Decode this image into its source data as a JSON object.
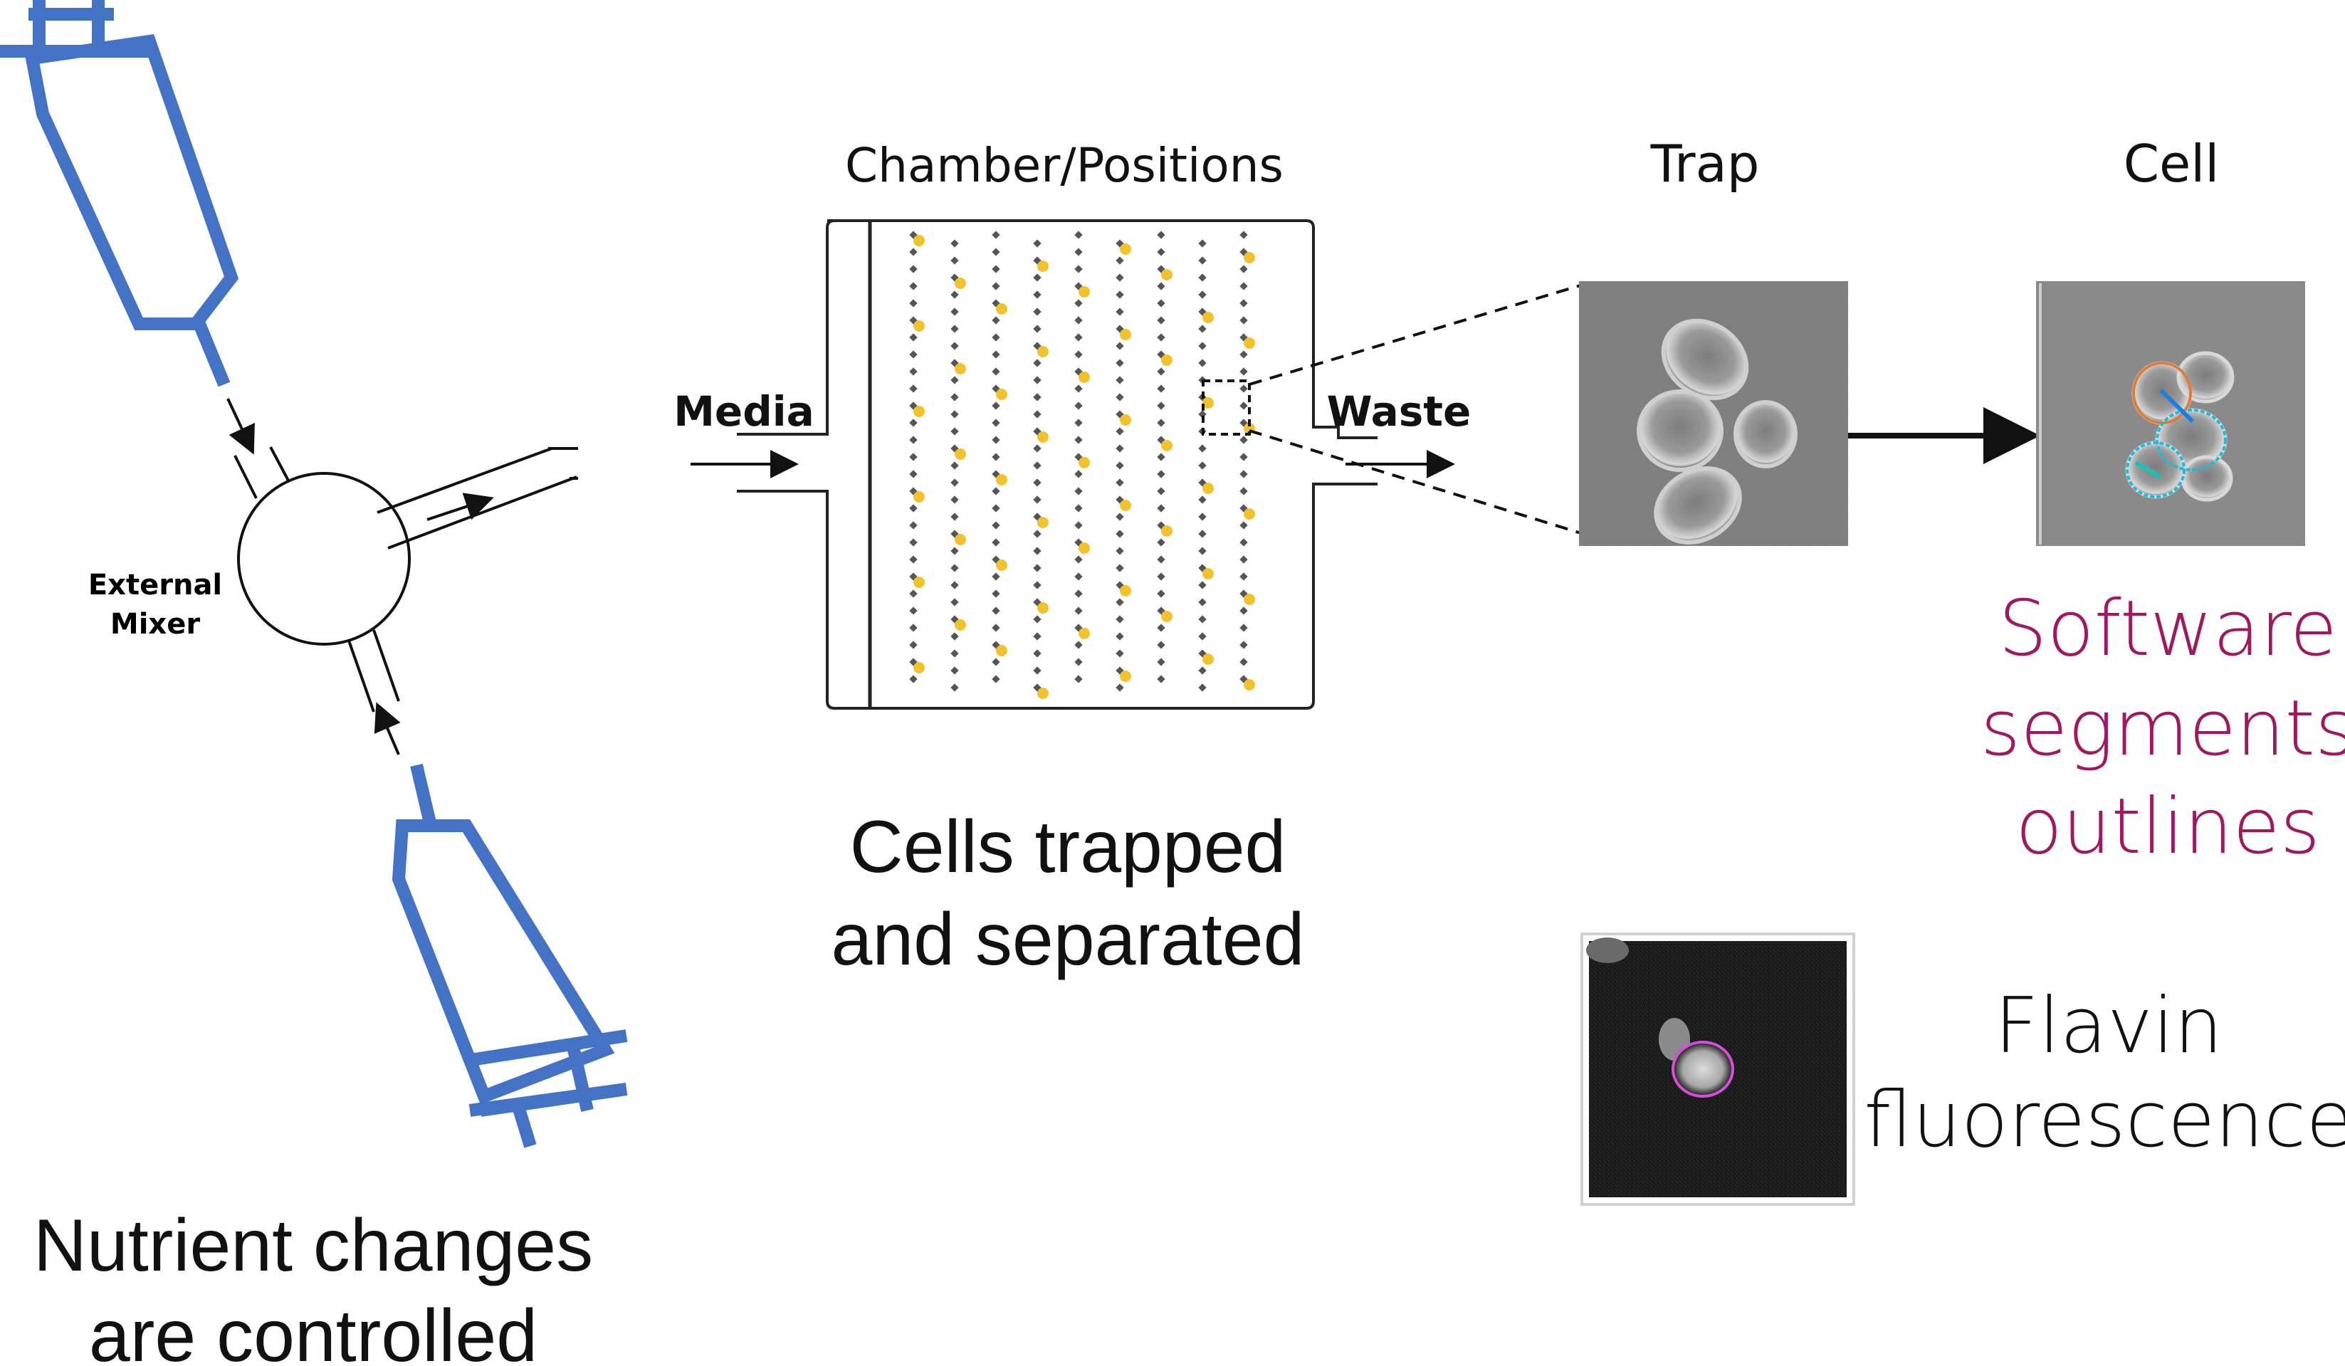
{
  "syringe": {
    "color": "#4472C4"
  },
  "mixer": {
    "label_line1": "External",
    "label_line2": "Mixer"
  },
  "chamber": {
    "title": "Chamber/Positions",
    "inlet_label": "Media",
    "outlet_label": "Waste",
    "cell_color": "#F2C12E",
    "post_color": "#555555"
  },
  "trap": {
    "title": "Trap"
  },
  "cell": {
    "title": "Cell"
  },
  "captions": {
    "left_line1": "Nutrient changes",
    "left_line2": "are controlled",
    "middle_line1": "Cells trapped",
    "middle_line2": "and separated",
    "software_line1": "Software",
    "software_line2": "segments",
    "software_line3": "outlines",
    "software_color": "#A0185F",
    "flavin_line1": "Flavin",
    "flavin_line2": "fluorescence"
  },
  "outline_colors": {
    "orange": "#E07A3A",
    "cyan": "#22B8D8",
    "magenta": "#D64FD8"
  }
}
